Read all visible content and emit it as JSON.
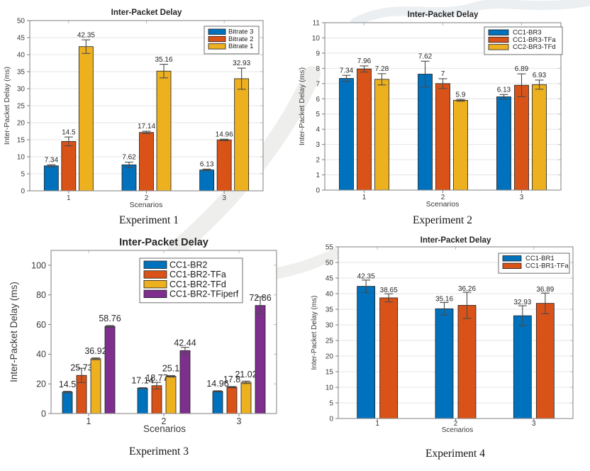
{
  "chart_data": [
    {
      "type": "bar",
      "title": "Inter-Packet Delay",
      "xlabel": "Scenarios",
      "ylabel": "Inter-Packet Delay (ms)",
      "caption": "Experiment 1",
      "categories": [
        "1",
        "2",
        "3"
      ],
      "ylim": [
        0,
        50
      ],
      "ytick_step": 5,
      "grid": true,
      "legend_position": "upper right",
      "series": [
        {
          "name": "Bitrate 3",
          "color": "#0072BD",
          "values": [
            7.34,
            7.62,
            6.13
          ],
          "errors": [
            0.3,
            0.8,
            0.25
          ],
          "labels": [
            "7.34",
            "7.62",
            "6.13"
          ]
        },
        {
          "name": "Bitrate 2",
          "color": "#D95319",
          "values": [
            14.5,
            17.14,
            14.96
          ],
          "errors": [
            1.3,
            0.35,
            0.2
          ],
          "labels": [
            "14.5",
            "17.14",
            "14.96"
          ]
        },
        {
          "name": "Bitrate 1",
          "color": "#EDB120",
          "values": [
            42.35,
            35.16,
            32.93
          ],
          "errors": [
            2.0,
            2.0,
            3.1
          ],
          "labels": [
            "42.35",
            "35.16",
            "32.93"
          ]
        }
      ]
    },
    {
      "type": "bar",
      "title": "Inter-Packet Delay",
      "xlabel": "Scenarios",
      "ylabel": "Inter-Packet Delay (ms)",
      "caption": "Experiment 2",
      "categories": [
        "1",
        "2",
        "3"
      ],
      "ylim": [
        0,
        11
      ],
      "ytick_step": 1,
      "grid": true,
      "legend_position": "upper right",
      "series": [
        {
          "name": "CC1-BR3",
          "color": "#0072BD",
          "values": [
            7.34,
            7.62,
            6.13
          ],
          "errors": [
            0.2,
            0.85,
            0.15
          ],
          "labels": [
            "7.34",
            "7.62",
            "6.13"
          ]
        },
        {
          "name": "CC1-BR3-TFa",
          "color": "#D95319",
          "values": [
            7.96,
            7.0,
            6.89
          ],
          "errors": [
            0.2,
            0.32,
            0.75
          ],
          "labels": [
            "7.96",
            "7",
            "6.89"
          ]
        },
        {
          "name": "CC2-BR3-TFd",
          "color": "#EDB120",
          "values": [
            7.28,
            5.9,
            6.93
          ],
          "errors": [
            0.37,
            0.06,
            0.3
          ],
          "labels": [
            "7.28",
            "5.9",
            "6.93"
          ]
        }
      ]
    },
    {
      "type": "bar",
      "title": "Inter-Packet Delay",
      "xlabel": "Scenarios",
      "ylabel": "Inter-Packet Delay (ms)",
      "caption": "Experiment 3",
      "categories": [
        "1",
        "2",
        "3"
      ],
      "ylim": [
        0,
        110
      ],
      "ytick_step": 20,
      "ytick_max_label": 100,
      "grid": false,
      "legend_position": "upper center",
      "series": [
        {
          "name": "CC1-BR2",
          "color": "#0072BD",
          "values": [
            14.5,
            17.14,
            14.96
          ],
          "errors": [
            0.5,
            0.3,
            0.4
          ],
          "labels": [
            "14.5",
            "17.14",
            "14.96"
          ]
        },
        {
          "name": "CC1-BR2-TFa",
          "color": "#D95319",
          "values": [
            25.73,
            18.77,
            17.8
          ],
          "errors": [
            4.8,
            2.2,
            0.4
          ],
          "labels": [
            "25.73",
            "18.77",
            "17.8"
          ]
        },
        {
          "name": "CC1-BR2-TFd",
          "color": "#EDB120",
          "values": [
            36.92,
            25.1,
            21.02
          ],
          "errors": [
            0.6,
            0.5,
            0.8
          ],
          "labels": [
            "36.92",
            "25.1",
            "21.02"
          ]
        },
        {
          "name": "CC1-BR2-TFiperf",
          "color": "#7E2F8E",
          "values": [
            58.76,
            42.44,
            72.86
          ],
          "errors": [
            0.6,
            2.2,
            5.8
          ],
          "labels": [
            "58.76",
            "42.44",
            "72,86"
          ]
        }
      ]
    },
    {
      "type": "bar",
      "title": "Inter-Packet Delay",
      "xlabel": "Scenarios",
      "ylabel": "Inter-Packet Delay (ms)",
      "caption": "Experiment 4",
      "categories": [
        "1",
        "2",
        "3"
      ],
      "ylim": [
        0,
        55
      ],
      "ytick_step": 5,
      "grid": true,
      "legend_position": "upper right",
      "series": [
        {
          "name": "CC1-BR1",
          "color": "#0072BD",
          "values": [
            42.35,
            35.16,
            32.93
          ],
          "errors": [
            2.0,
            2.0,
            3.2
          ],
          "labels": [
            "42.35",
            "35.16",
            "32.93"
          ]
        },
        {
          "name": "CC1-BR1-TFa",
          "color": "#D95319",
          "values": [
            38.65,
            36.26,
            36.89
          ],
          "errors": [
            1.3,
            4.2,
            3.3
          ],
          "labels": [
            "38.65",
            "36.26",
            "36.89"
          ]
        }
      ]
    }
  ]
}
